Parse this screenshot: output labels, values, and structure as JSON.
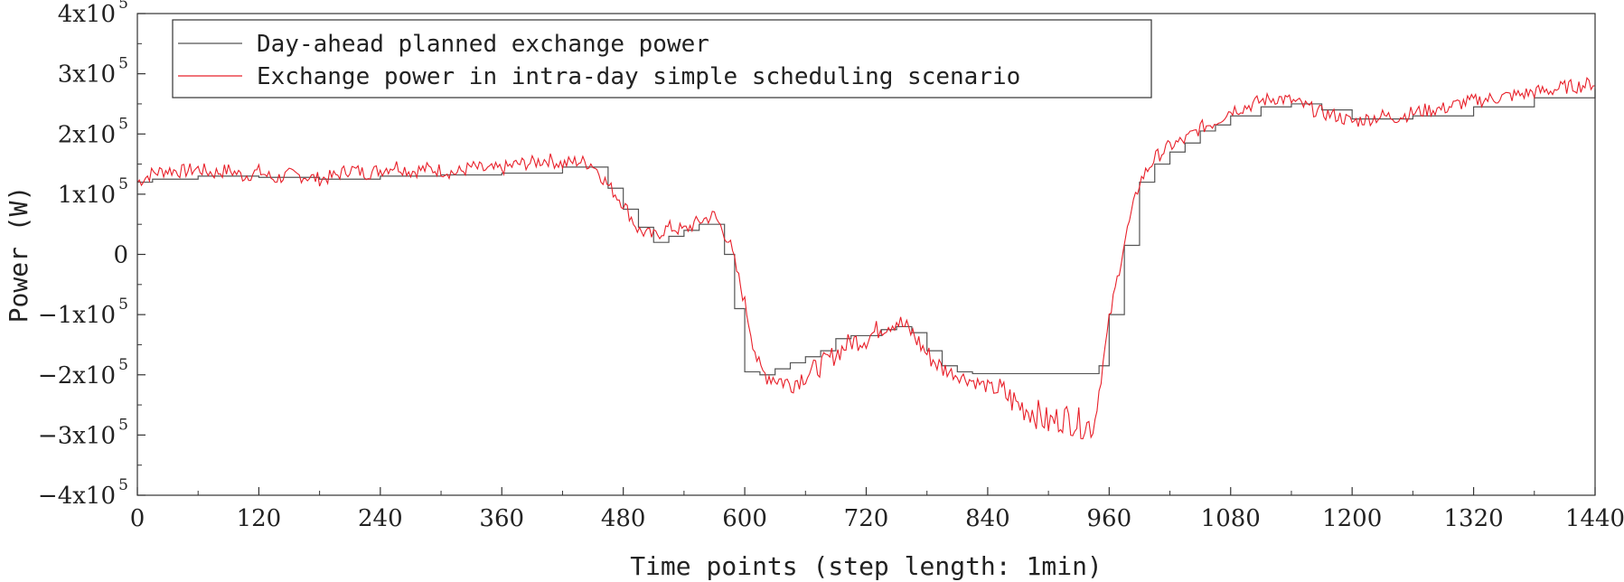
{
  "chart_data": {
    "type": "line",
    "title": "",
    "xlabel": "Time points (step length: 1min)",
    "ylabel": "Power (W)",
    "xlim": [
      0,
      1440
    ],
    "ylim": [
      -400000,
      400000
    ],
    "x_ticks": [
      0,
      120,
      240,
      360,
      480,
      600,
      720,
      840,
      960,
      1080,
      1200,
      1320,
      1440
    ],
    "y_ticks": [
      {
        "value": 400000,
        "mantissa": "4x10",
        "exp": "5"
      },
      {
        "value": 300000,
        "mantissa": "3x10",
        "exp": "5"
      },
      {
        "value": 200000,
        "mantissa": "2x10",
        "exp": "5"
      },
      {
        "value": 100000,
        "mantissa": "1x10",
        "exp": "5"
      },
      {
        "value": 0,
        "mantissa": "0",
        "exp": ""
      },
      {
        "value": -100000,
        "mantissa": "−1x10",
        "exp": "5"
      },
      {
        "value": -200000,
        "mantissa": "−2x10",
        "exp": "5"
      },
      {
        "value": -300000,
        "mantissa": "−3x10",
        "exp": "5"
      },
      {
        "value": -400000,
        "mantissa": "−4x10",
        "exp": "5"
      }
    ],
    "grid": false,
    "legend_position": "top-left",
    "series": [
      {
        "name": "Day-ahead planned exchange power",
        "color": "#555555",
        "x": [
          0,
          15,
          60,
          120,
          180,
          240,
          300,
          360,
          420,
          450,
          465,
          480,
          495,
          510,
          525,
          540,
          555,
          570,
          580,
          590,
          600,
          615,
          630,
          645,
          660,
          675,
          690,
          705,
          720,
          735,
          750,
          765,
          780,
          795,
          810,
          825,
          840,
          870,
          900,
          930,
          945,
          950,
          960,
          975,
          990,
          1005,
          1020,
          1035,
          1050,
          1065,
          1080,
          1110,
          1140,
          1170,
          1200,
          1260,
          1320,
          1380,
          1440
        ],
        "y": [
          120000,
          125000,
          130000,
          128000,
          125000,
          130000,
          132000,
          135000,
          145000,
          145000,
          110000,
          75000,
          45000,
          20000,
          30000,
          40000,
          50000,
          50000,
          0,
          -90000,
          -195000,
          -200000,
          -190000,
          -180000,
          -170000,
          -160000,
          -140000,
          -135000,
          -135000,
          -125000,
          -120000,
          -130000,
          -160000,
          -185000,
          -195000,
          -198000,
          -198000,
          -198000,
          -198000,
          -198000,
          -198000,
          -185000,
          -100000,
          15000,
          120000,
          150000,
          170000,
          185000,
          205000,
          215000,
          230000,
          245000,
          250000,
          240000,
          225000,
          230000,
          245000,
          260000,
          275000
        ]
      },
      {
        "name": "Exchange power in intra-day simple scheduling scenario",
        "color": "#e8202a",
        "x": [
          0,
          15,
          30,
          45,
          60,
          75,
          90,
          105,
          120,
          135,
          150,
          165,
          180,
          195,
          210,
          225,
          240,
          255,
          270,
          285,
          300,
          315,
          330,
          345,
          360,
          375,
          390,
          405,
          420,
          435,
          450,
          465,
          480,
          495,
          510,
          525,
          540,
          555,
          570,
          585,
          600,
          615,
          630,
          645,
          660,
          675,
          690,
          705,
          720,
          735,
          750,
          765,
          780,
          795,
          810,
          825,
          840,
          855,
          870,
          885,
          900,
          915,
          930,
          945,
          960,
          975,
          990,
          1005,
          1020,
          1035,
          1050,
          1065,
          1080,
          1095,
          1110,
          1125,
          1140,
          1155,
          1170,
          1185,
          1200,
          1215,
          1230,
          1245,
          1260,
          1275,
          1290,
          1305,
          1320,
          1335,
          1350,
          1365,
          1380,
          1395,
          1410,
          1425,
          1440
        ],
        "y": [
          120000,
          135000,
          140000,
          138000,
          142000,
          135000,
          140000,
          130000,
          138000,
          125000,
          132000,
          130000,
          125000,
          130000,
          142000,
          135000,
          140000,
          148000,
          138000,
          142000,
          140000,
          135000,
          145000,
          140000,
          142000,
          150000,
          152000,
          158000,
          150000,
          155000,
          150000,
          115000,
          85000,
          40000,
          30000,
          45000,
          40000,
          55000,
          65000,
          20000,
          -80000,
          -195000,
          -205000,
          -215000,
          -200000,
          -185000,
          -165000,
          -145000,
          -140000,
          -120000,
          -110000,
          -130000,
          -165000,
          -190000,
          -200000,
          -210000,
          -220000,
          -230000,
          -250000,
          -260000,
          -280000,
          -270000,
          -280000,
          -285000,
          -110000,
          20000,
          120000,
          160000,
          180000,
          190000,
          210000,
          220000,
          240000,
          245000,
          255000,
          260000,
          255000,
          245000,
          235000,
          230000,
          220000,
          225000,
          230000,
          228000,
          235000,
          240000,
          242000,
          250000,
          255000,
          258000,
          262000,
          265000,
          270000,
          272000,
          278000,
          280000,
          285000
        ]
      }
    ]
  }
}
